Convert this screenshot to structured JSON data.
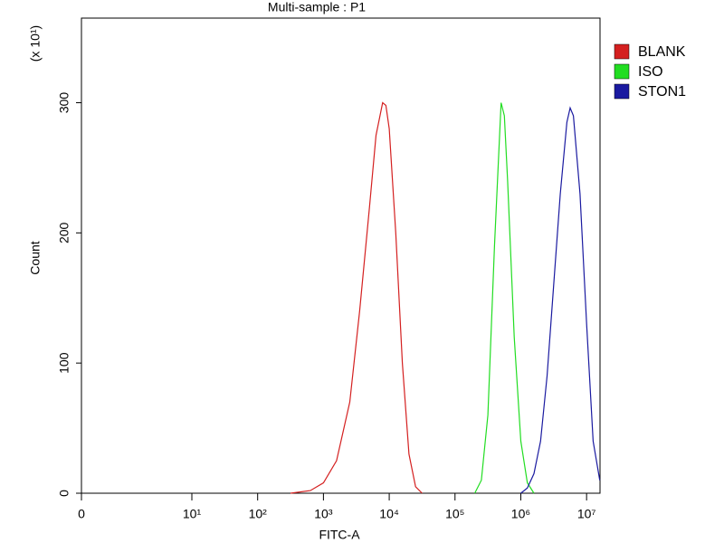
{
  "chart_data": {
    "type": "line",
    "title": "Multi-sample : P1",
    "x_label": "FITC-A",
    "y_label": "Count",
    "y_multiplier": "(x 10¹)",
    "xscale": "biexponential",
    "xlim": [
      0,
      16000000
    ],
    "xticks": [
      0,
      {
        "value": 10,
        "label": "10¹"
      },
      {
        "value": 100,
        "label": "10²"
      },
      {
        "value": 1000,
        "label": "10³"
      },
      {
        "value": 10000,
        "label": "10⁴"
      },
      {
        "value": 100000,
        "label": "10⁵"
      },
      {
        "value": 1000000,
        "label": "10⁶"
      },
      {
        "value": 10000000,
        "label": "10⁷"
      }
    ],
    "ylim": [
      0,
      365
    ],
    "yticks": [
      0,
      100,
      200,
      300
    ],
    "legend": "right",
    "series": [
      {
        "name": "BLANK",
        "color": "#d42020",
        "x": [
          316,
          631,
          1000,
          1585,
          2512,
          3548,
          5012,
          6310,
          7943,
          8913,
          10000,
          12589,
          15849,
          19953,
          25119,
          31623
        ],
        "values": [
          0,
          2,
          8,
          25,
          70,
          140,
          220,
          275,
          300,
          298,
          280,
          200,
          100,
          30,
          5,
          0
        ]
      },
      {
        "name": "ISO",
        "color": "#22dd22",
        "x": [
          199526,
          251189,
          316228,
          398107,
          501187,
          562341,
          630957,
          794328,
          1000000,
          1258925,
          1584893
        ],
        "values": [
          0,
          10,
          60,
          190,
          300,
          290,
          240,
          120,
          40,
          8,
          0
        ]
      },
      {
        "name": "STON1",
        "color": "#1a1aa0",
        "x": [
          1000000,
          1258925,
          1584893,
          1995262,
          2511886,
          3162278,
          3981072,
          5011872,
          5623413,
          6309573,
          7943282,
          10000000,
          12589254,
          15848932
        ],
        "values": [
          0,
          4,
          15,
          40,
          90,
          160,
          230,
          285,
          296,
          290,
          230,
          130,
          40,
          10
        ]
      }
    ]
  }
}
